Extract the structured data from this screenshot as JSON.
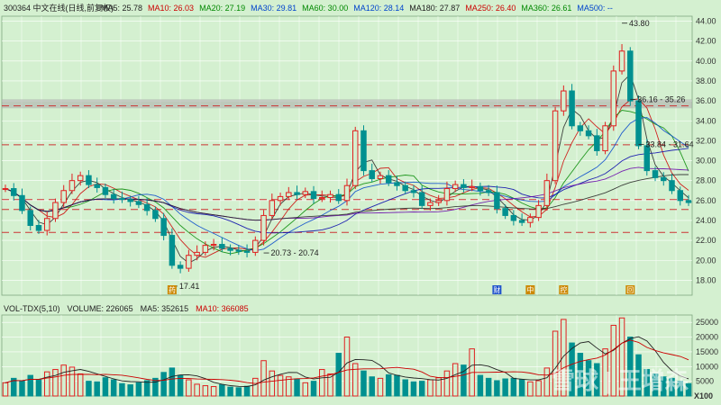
{
  "header": {
    "code_name": "300364 中文在线(日线,前复权)",
    "ma_items": [
      {
        "label": "MA5: 25.78",
        "color": "#222222"
      },
      {
        "label": "MA10: 26.03",
        "color": "#cc0000"
      },
      {
        "label": "MA20: 27.19",
        "color": "#008800"
      },
      {
        "label": "MA30: 29.81",
        "color": "#0044cc"
      },
      {
        "label": "MA60: 30.00",
        "color": "#008800"
      },
      {
        "label": "MA120: 28.14",
        "color": "#0044cc"
      },
      {
        "label": "MA180: 27.87",
        "color": "#222222"
      },
      {
        "label": "MA250: 26.40",
        "color": "#cc0000"
      },
      {
        "label": "MA360: 26.61",
        "color": "#008800"
      },
      {
        "label": "MA500: --",
        "color": "#0044cc"
      }
    ]
  },
  "vol_header": {
    "items": [
      {
        "label": "VOL-TDX(5,10)",
        "color": "#222222"
      },
      {
        "label": "VOLUME: 226065",
        "color": "#222222"
      },
      {
        "label": "MA5: 352615",
        "color": "#222222"
      },
      {
        "label": "MA10: 366085",
        "color": "#cc0000"
      }
    ]
  },
  "chart_data": [
    {
      "type": "line",
      "name": "price",
      "ylim": [
        16.5,
        44.5
      ],
      "y_ticks": [
        18,
        20,
        22,
        24,
        26,
        28,
        30,
        32,
        34,
        36,
        38,
        40,
        42,
        44
      ],
      "grid": true,
      "hlines_dashed": [
        35.5,
        31.6,
        26.1,
        25.1,
        22.8
      ],
      "band": [
        35.26,
        36.16
      ],
      "close": [
        27.2,
        26.5,
        25.0,
        23.5,
        23.0,
        24.2,
        25.8,
        27.0,
        28.0,
        28.5,
        27.6,
        27.3,
        26.6,
        26.2,
        26.1,
        25.9,
        25.6,
        25.0,
        24.2,
        22.5,
        19.5,
        19.2,
        20.5,
        20.8,
        21.5,
        21.6,
        21.2,
        21.0,
        20.9,
        20.8,
        22.0,
        24.5,
        26.0,
        26.4,
        26.8,
        26.6,
        26.9,
        26.2,
        26.3,
        26.6,
        26.0,
        27.5,
        33.0,
        29.0,
        28.2,
        28.5,
        27.8,
        27.5,
        27.0,
        26.8,
        25.5,
        25.8,
        26.0,
        27.2,
        27.6,
        27.3,
        27.4,
        27.0,
        26.8,
        25.2,
        24.5,
        24.0,
        23.8,
        24.3,
        25.5,
        28.0,
        35.0,
        37.0,
        33.5,
        33.0,
        32.5,
        31.0,
        33.5,
        39.0,
        41.0,
        36.0,
        31.5,
        29.0,
        28.3,
        28.0,
        27.0,
        26.0,
        25.8
      ],
      "point_labels": [
        {
          "text": "17.41",
          "i": 20,
          "value": 17.41
        },
        {
          "text": "20.73 - 20.74",
          "i": 31,
          "value": 20.74
        },
        {
          "text": "43.80",
          "i": 74,
          "value": 43.8
        },
        {
          "text": "36.16 - 35.26",
          "i": 75,
          "value": 36.16
        },
        {
          "text": "33.84 - 31.64",
          "i": 76,
          "value": 31.64
        }
      ],
      "event_markers": [
        {
          "text": "药",
          "i": 20,
          "color": "#cc8800"
        },
        {
          "text": "财",
          "i": 59,
          "color": "#2255cc"
        },
        {
          "text": "中",
          "i": 63,
          "color": "#cc8800"
        },
        {
          "text": "控",
          "i": 67,
          "color": "#cc8800"
        },
        {
          "text": "回",
          "i": 75,
          "color": "#cc8800"
        }
      ]
    },
    {
      "type": "bar",
      "name": "volume",
      "ylim": [
        0,
        27500
      ],
      "y_ticks": [
        5000,
        10000,
        15000,
        20000,
        25000
      ],
      "unit_label": "X100",
      "values": [
        4500,
        6000,
        5200,
        7000,
        5500,
        8200,
        9000,
        10500,
        9800,
        7500,
        5000,
        4800,
        6200,
        5500,
        4200,
        3800,
        4500,
        5200,
        6000,
        8000,
        9500,
        7000,
        5500,
        4000,
        3500,
        3200,
        3800,
        3000,
        2800,
        3300,
        6000,
        12000,
        8500,
        7000,
        6500,
        5800,
        4500,
        5000,
        9000,
        7500,
        14500,
        20000,
        11000,
        8500,
        6500,
        6000,
        7200,
        7000,
        5500,
        4800,
        5000,
        5500,
        6200,
        8500,
        11000,
        10500,
        16000,
        7000,
        6000,
        5200,
        5800,
        6000,
        5500,
        4800,
        5200,
        9500,
        22000,
        26000,
        18000,
        14500,
        12000,
        11000,
        16000,
        24000,
        26500,
        20000,
        14000,
        9000,
        7500,
        6500,
        6000,
        5000,
        4200
      ]
    }
  ],
  "watermark": "雪球 | 王增森"
}
